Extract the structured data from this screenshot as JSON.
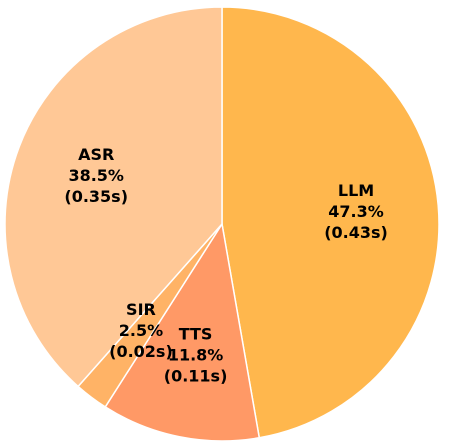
{
  "chart_data": {
    "type": "pie",
    "categories": [
      "LLM",
      "TTS",
      "SIR",
      "ASR"
    ],
    "values": [
      47.3,
      11.8,
      2.5,
      38.5
    ],
    "value_labels": [
      "47.3%",
      "11.8%",
      "2.5%",
      "38.5%"
    ],
    "durations": [
      0.43,
      0.11,
      0.02,
      0.35
    ],
    "duration_labels": [
      "(0.43s)",
      "(0.11s)",
      "(0.02s)",
      "(0.35s)"
    ],
    "colors": [
      "#ffb74d",
      "#ff9966",
      "#ffb366",
      "#ffc896"
    ]
  }
}
